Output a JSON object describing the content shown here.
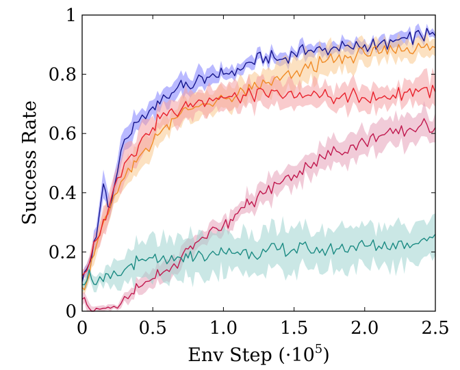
{
  "chart_data": {
    "type": "line",
    "title": "",
    "xlabel": "Env Step (·10",
    "xlabel_exponent": "5",
    "xlabel_close": ")",
    "ylabel": "Success Rate",
    "xlim": [
      0,
      2.5
    ],
    "ylim": [
      0,
      1
    ],
    "grid": false,
    "legend": "none",
    "xticks": [
      0,
      0.5,
      1.0,
      1.5,
      2.0,
      2.5
    ],
    "xtick_labels": [
      "0",
      "0.5",
      "1.0",
      "1.5",
      "2.0",
      "2.5"
    ],
    "yticks": [
      0,
      0.2,
      0.4,
      0.6,
      0.8,
      1
    ],
    "ytick_labels": [
      "0",
      "0.2",
      "0.4",
      "0.6",
      "0.8",
      "1"
    ],
    "series": [
      {
        "color": "#14148c",
        "fill": "#8080ff",
        "points": [
          [
            0.0,
            0.1
          ],
          [
            0.05,
            0.16
          ],
          [
            0.1,
            0.25
          ],
          [
            0.15,
            0.43
          ],
          [
            0.2,
            0.35
          ],
          [
            0.25,
            0.47
          ],
          [
            0.3,
            0.58
          ],
          [
            0.35,
            0.6
          ],
          [
            0.4,
            0.64
          ],
          [
            0.45,
            0.65
          ],
          [
            0.5,
            0.69
          ],
          [
            0.55,
            0.7
          ],
          [
            0.6,
            0.72
          ],
          [
            0.65,
            0.74
          ],
          [
            0.7,
            0.78
          ],
          [
            0.75,
            0.76
          ],
          [
            0.8,
            0.77
          ],
          [
            0.85,
            0.79
          ],
          [
            0.9,
            0.79
          ],
          [
            0.95,
            0.79
          ],
          [
            1.0,
            0.8
          ],
          [
            1.1,
            0.82
          ],
          [
            1.2,
            0.84
          ],
          [
            1.3,
            0.86
          ],
          [
            1.4,
            0.85
          ],
          [
            1.5,
            0.87
          ],
          [
            1.6,
            0.88
          ],
          [
            1.7,
            0.88
          ],
          [
            1.8,
            0.89
          ],
          [
            1.9,
            0.89
          ],
          [
            2.0,
            0.9
          ],
          [
            2.1,
            0.9
          ],
          [
            2.2,
            0.91
          ],
          [
            2.3,
            0.92
          ],
          [
            2.4,
            0.93
          ],
          [
            2.5,
            0.93
          ]
        ],
        "band": [
          0.02,
          0.02,
          0.03,
          0.04,
          0.04,
          0.04,
          0.04,
          0.04,
          0.03,
          0.03,
          0.03,
          0.03,
          0.03,
          0.03,
          0.03,
          0.03,
          0.03,
          0.03,
          0.03,
          0.02,
          0.02,
          0.02,
          0.02,
          0.02,
          0.02,
          0.02,
          0.02,
          0.02,
          0.02,
          0.02,
          0.02,
          0.02,
          0.02,
          0.02,
          0.02,
          0.01
        ]
      },
      {
        "color": "#f08a24",
        "fill": "#fac98e",
        "points": [
          [
            0.0,
            0.08
          ],
          [
            0.05,
            0.12
          ],
          [
            0.1,
            0.22
          ],
          [
            0.15,
            0.3
          ],
          [
            0.2,
            0.35
          ],
          [
            0.25,
            0.4
          ],
          [
            0.3,
            0.45
          ],
          [
            0.35,
            0.47
          ],
          [
            0.4,
            0.52
          ],
          [
            0.45,
            0.55
          ],
          [
            0.5,
            0.57
          ],
          [
            0.55,
            0.6
          ],
          [
            0.6,
            0.63
          ],
          [
            0.65,
            0.65
          ],
          [
            0.7,
            0.67
          ],
          [
            0.75,
            0.68
          ],
          [
            0.8,
            0.69
          ],
          [
            0.85,
            0.7
          ],
          [
            0.9,
            0.7
          ],
          [
            0.95,
            0.71
          ],
          [
            1.0,
            0.72
          ],
          [
            1.1,
            0.73
          ],
          [
            1.2,
            0.75
          ],
          [
            1.3,
            0.77
          ],
          [
            1.4,
            0.78
          ],
          [
            1.5,
            0.8
          ],
          [
            1.6,
            0.82
          ],
          [
            1.7,
            0.84
          ],
          [
            1.8,
            0.85
          ],
          [
            1.9,
            0.86
          ],
          [
            2.0,
            0.87
          ],
          [
            2.1,
            0.87
          ],
          [
            2.2,
            0.88
          ],
          [
            2.3,
            0.89
          ],
          [
            2.4,
            0.89
          ],
          [
            2.5,
            0.89
          ]
        ],
        "band": [
          0.02,
          0.02,
          0.03,
          0.03,
          0.04,
          0.04,
          0.04,
          0.04,
          0.04,
          0.04,
          0.04,
          0.04,
          0.04,
          0.04,
          0.04,
          0.04,
          0.04,
          0.04,
          0.04,
          0.04,
          0.04,
          0.04,
          0.04,
          0.04,
          0.05,
          0.05,
          0.05,
          0.05,
          0.04,
          0.04,
          0.04,
          0.04,
          0.03,
          0.03,
          0.03,
          0.03
        ]
      },
      {
        "color": "#e8202a",
        "fill": "#f4a0a4",
        "points": [
          [
            0.0,
            0.12
          ],
          [
            0.05,
            0.16
          ],
          [
            0.1,
            0.24
          ],
          [
            0.15,
            0.31
          ],
          [
            0.2,
            0.37
          ],
          [
            0.25,
            0.45
          ],
          [
            0.3,
            0.5
          ],
          [
            0.35,
            0.53
          ],
          [
            0.4,
            0.56
          ],
          [
            0.45,
            0.6
          ],
          [
            0.5,
            0.62
          ],
          [
            0.55,
            0.65
          ],
          [
            0.6,
            0.66
          ],
          [
            0.65,
            0.67
          ],
          [
            0.7,
            0.68
          ],
          [
            0.75,
            0.69
          ],
          [
            0.8,
            0.7
          ],
          [
            0.85,
            0.71
          ],
          [
            0.9,
            0.72
          ],
          [
            0.95,
            0.72
          ],
          [
            1.0,
            0.72
          ],
          [
            1.1,
            0.72
          ],
          [
            1.2,
            0.73
          ],
          [
            1.3,
            0.73
          ],
          [
            1.4,
            0.73
          ],
          [
            1.5,
            0.72
          ],
          [
            1.6,
            0.73
          ],
          [
            1.7,
            0.73
          ],
          [
            1.8,
            0.72
          ],
          [
            1.9,
            0.73
          ],
          [
            2.0,
            0.72
          ],
          [
            2.1,
            0.72
          ],
          [
            2.2,
            0.73
          ],
          [
            2.3,
            0.74
          ],
          [
            2.4,
            0.75
          ],
          [
            2.5,
            0.74
          ]
        ],
        "band": [
          0.02,
          0.02,
          0.03,
          0.04,
          0.04,
          0.05,
          0.05,
          0.05,
          0.05,
          0.05,
          0.04,
          0.04,
          0.04,
          0.04,
          0.04,
          0.04,
          0.04,
          0.04,
          0.04,
          0.04,
          0.04,
          0.04,
          0.04,
          0.04,
          0.04,
          0.04,
          0.04,
          0.04,
          0.04,
          0.04,
          0.04,
          0.04,
          0.04,
          0.04,
          0.05,
          0.05
        ]
      },
      {
        "color": "#c0184e",
        "fill": "#e6a0b8",
        "points": [
          [
            0.0,
            0.04
          ],
          [
            0.05,
            0.01
          ],
          [
            0.1,
            0.01
          ],
          [
            0.15,
            0.01
          ],
          [
            0.2,
            0.01
          ],
          [
            0.25,
            0.01
          ],
          [
            0.3,
            0.05
          ],
          [
            0.35,
            0.06
          ],
          [
            0.4,
            0.08
          ],
          [
            0.45,
            0.1
          ],
          [
            0.5,
            0.11
          ],
          [
            0.55,
            0.12
          ],
          [
            0.6,
            0.14
          ],
          [
            0.65,
            0.16
          ],
          [
            0.7,
            0.18
          ],
          [
            0.75,
            0.21
          ],
          [
            0.8,
            0.23
          ],
          [
            0.85,
            0.25
          ],
          [
            0.9,
            0.27
          ],
          [
            0.95,
            0.28
          ],
          [
            1.0,
            0.29
          ],
          [
            1.05,
            0.31
          ],
          [
            1.1,
            0.33
          ],
          [
            1.15,
            0.35
          ],
          [
            1.2,
            0.37
          ],
          [
            1.3,
            0.4
          ],
          [
            1.4,
            0.43
          ],
          [
            1.5,
            0.46
          ],
          [
            1.6,
            0.49
          ],
          [
            1.7,
            0.52
          ],
          [
            1.8,
            0.54
          ],
          [
            1.9,
            0.56
          ],
          [
            2.0,
            0.57
          ],
          [
            2.1,
            0.59
          ],
          [
            2.2,
            0.6
          ],
          [
            2.3,
            0.61
          ],
          [
            2.4,
            0.63
          ],
          [
            2.5,
            0.62
          ]
        ],
        "band": [
          0.02,
          0.02,
          0.01,
          0.01,
          0.01,
          0.01,
          0.02,
          0.02,
          0.02,
          0.03,
          0.03,
          0.03,
          0.03,
          0.03,
          0.03,
          0.03,
          0.03,
          0.03,
          0.03,
          0.03,
          0.03,
          0.03,
          0.03,
          0.03,
          0.04,
          0.04,
          0.04,
          0.04,
          0.04,
          0.04,
          0.04,
          0.05,
          0.05,
          0.05,
          0.05,
          0.05,
          0.05,
          0.05
        ]
      },
      {
        "color": "#1a8a82",
        "fill": "#9fd3cf",
        "points": [
          [
            0.0,
            0.09
          ],
          [
            0.05,
            0.14
          ],
          [
            0.1,
            0.09
          ],
          [
            0.15,
            0.1
          ],
          [
            0.2,
            0.11
          ],
          [
            0.25,
            0.12
          ],
          [
            0.3,
            0.14
          ],
          [
            0.35,
            0.16
          ],
          [
            0.4,
            0.17
          ],
          [
            0.45,
            0.17
          ],
          [
            0.5,
            0.18
          ],
          [
            0.55,
            0.17
          ],
          [
            0.6,
            0.16
          ],
          [
            0.65,
            0.17
          ],
          [
            0.7,
            0.18
          ],
          [
            0.75,
            0.18
          ],
          [
            0.8,
            0.18
          ],
          [
            0.85,
            0.19
          ],
          [
            0.9,
            0.19
          ],
          [
            0.95,
            0.19
          ],
          [
            1.0,
            0.2
          ],
          [
            1.1,
            0.2
          ],
          [
            1.2,
            0.2
          ],
          [
            1.3,
            0.2
          ],
          [
            1.4,
            0.21
          ],
          [
            1.5,
            0.21
          ],
          [
            1.6,
            0.21
          ],
          [
            1.7,
            0.21
          ],
          [
            1.8,
            0.21
          ],
          [
            1.9,
            0.22
          ],
          [
            2.0,
            0.22
          ],
          [
            2.1,
            0.22
          ],
          [
            2.2,
            0.23
          ],
          [
            2.3,
            0.23
          ],
          [
            2.4,
            0.24
          ],
          [
            2.5,
            0.26
          ]
        ],
        "band": [
          0.02,
          0.03,
          0.02,
          0.02,
          0.03,
          0.04,
          0.04,
          0.05,
          0.06,
          0.06,
          0.07,
          0.07,
          0.07,
          0.07,
          0.07,
          0.07,
          0.07,
          0.07,
          0.07,
          0.07,
          0.07,
          0.07,
          0.07,
          0.07,
          0.07,
          0.07,
          0.07,
          0.07,
          0.07,
          0.07,
          0.07,
          0.07,
          0.07,
          0.07,
          0.07,
          0.07
        ]
      }
    ]
  }
}
